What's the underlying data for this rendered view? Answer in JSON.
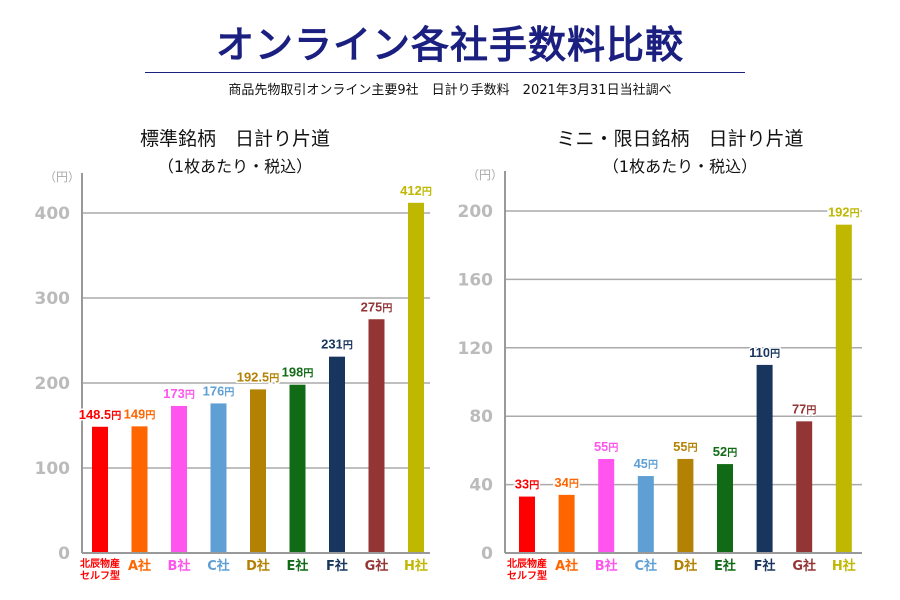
{
  "header": {
    "title": "オンライン各社手数料比較",
    "subtitle": "商品先物取引オンライン主要9社　日計り手数料　2021年3月31日当社調べ"
  },
  "chart_data": [
    {
      "type": "bar",
      "title": "標準銘柄　日計り片道",
      "subtitle": "（1枚あたり・税込）",
      "ylabel": "（円）",
      "ylim": [
        0,
        400
      ],
      "yticks": [
        0,
        100,
        200,
        300,
        400
      ],
      "grid": true,
      "unit": "円",
      "categories": [
        "北辰物産\nセルフ型",
        "A社",
        "B社",
        "C社",
        "D社",
        "E社",
        "F社",
        "G社",
        "H社"
      ],
      "values": [
        148.5,
        149,
        173,
        176,
        192.5,
        198,
        231,
        275,
        412
      ],
      "colors": [
        "#ff0000",
        "#ff6600",
        "#ff55ee",
        "#5f9fd4",
        "#b38204",
        "#116b16",
        "#18355e",
        "#943535",
        "#bfb700"
      ]
    },
    {
      "type": "bar",
      "title": "ミニ・限日銘柄　日計り片道",
      "subtitle": "（1枚あたり・税込）",
      "ylabel": "（円）",
      "ylim": [
        0,
        200
      ],
      "yticks": [
        0,
        40,
        80,
        120,
        160,
        200
      ],
      "grid": true,
      "unit": "円",
      "categories": [
        "北辰物産\nセルフ型",
        "A社",
        "B社",
        "C社",
        "D社",
        "E社",
        "F社",
        "G社",
        "H社"
      ],
      "values": [
        33,
        34,
        55,
        45,
        55,
        52,
        110,
        77,
        192
      ],
      "colors": [
        "#ff0000",
        "#ff6600",
        "#ff55ee",
        "#5f9fd4",
        "#b38204",
        "#116b16",
        "#18355e",
        "#943535",
        "#bfb700"
      ]
    }
  ]
}
